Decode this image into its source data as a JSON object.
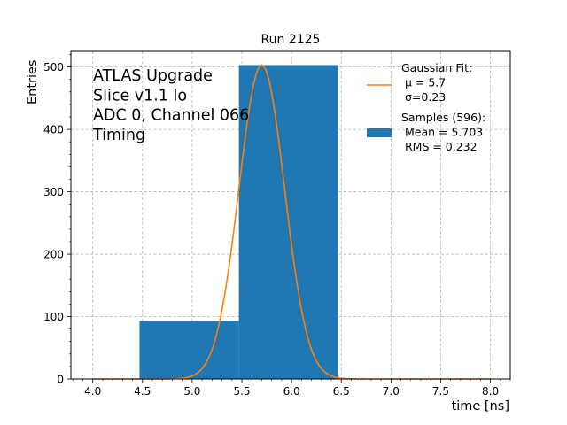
{
  "chart_data": {
    "type": "bar",
    "title": "Run 2125",
    "xlabel": "time [ns]",
    "ylabel": "Entries",
    "xlim": [
      3.78,
      8.2
    ],
    "ylim": [
      0,
      525
    ],
    "grid": true,
    "x_ticks": [
      "4.0",
      "4.5",
      "5.0",
      "5.5",
      "6.0",
      "6.5",
      "7.0",
      "7.5",
      "8.0"
    ],
    "x_tick_values": [
      4.0,
      4.5,
      5.0,
      5.5,
      6.0,
      6.5,
      7.0,
      7.5,
      8.0
    ],
    "y_ticks": [
      "0",
      "100",
      "200",
      "300",
      "400",
      "500"
    ],
    "y_tick_values": [
      0,
      100,
      200,
      300,
      400,
      500
    ],
    "annotation_lines": [
      "ATLAS Upgrade",
      "Slice v1.1 lo",
      "ADC 0, Channel 066",
      "Timing"
    ],
    "histogram": {
      "name_lines": [
        "Samples (596):",
        " Mean = 5.703",
        " RMS = 0.232"
      ],
      "color": "#1f77b4",
      "bins": [
        {
          "x0": 4.47,
          "x1": 5.47,
          "count": 93
        },
        {
          "x0": 5.47,
          "x1": 6.47,
          "count": 503
        }
      ]
    },
    "fit": {
      "name_lines": [
        "Gaussian Fit:",
        " μ = 5.7",
        " σ=0.23"
      ],
      "color": "#ff7f0e",
      "mu": 5.7,
      "sigma": 0.23,
      "amplitude": 503,
      "x_range": [
        4.0,
        8.0
      ]
    },
    "legend_position": "upper right"
  }
}
